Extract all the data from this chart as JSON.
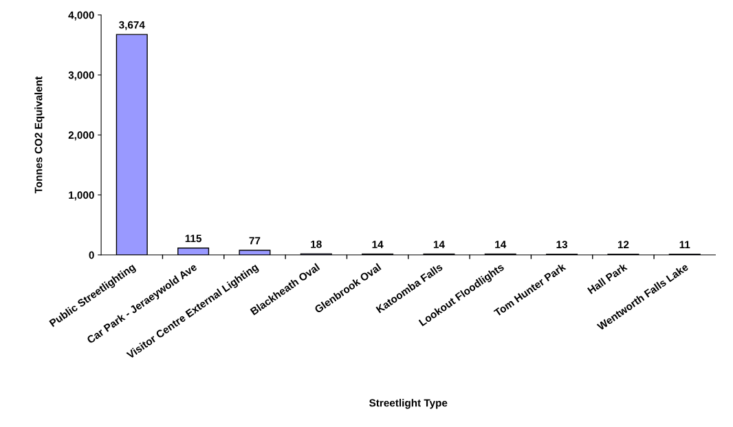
{
  "chart_data": {
    "type": "bar",
    "xlabel": "Streetlight Type",
    "ylabel": "Tonnes CO2 Equivalent",
    "categories": [
      "Public Streetlighting",
      "Car Park - Jeraeywold Ave",
      "Visitor Centre External Lighting",
      "Blackheath Oval",
      "Glenbrook Oval",
      "Katoomba Falls",
      "Lookout Floodlights",
      "Tom Hunter Park",
      "Hall Park",
      "Wentworth Falls Lake"
    ],
    "values": [
      3674,
      115,
      77,
      18,
      14,
      14,
      14,
      13,
      12,
      11
    ],
    "value_labels": [
      "3,674",
      "115",
      "77",
      "18",
      "14",
      "14",
      "14",
      "13",
      "12",
      "11"
    ],
    "color": "#9999ff",
    "ylim": [
      0,
      4000
    ],
    "yticks": [
      0,
      {
        "value": 1000,
        "label": "1,000"
      },
      {
        "value": 2000,
        "label": "2,000"
      },
      {
        "value": 3000,
        "label": "3,000"
      },
      {
        "value": 4000,
        "label": "4,000"
      }
    ],
    "grid": false,
    "legend": false
  }
}
